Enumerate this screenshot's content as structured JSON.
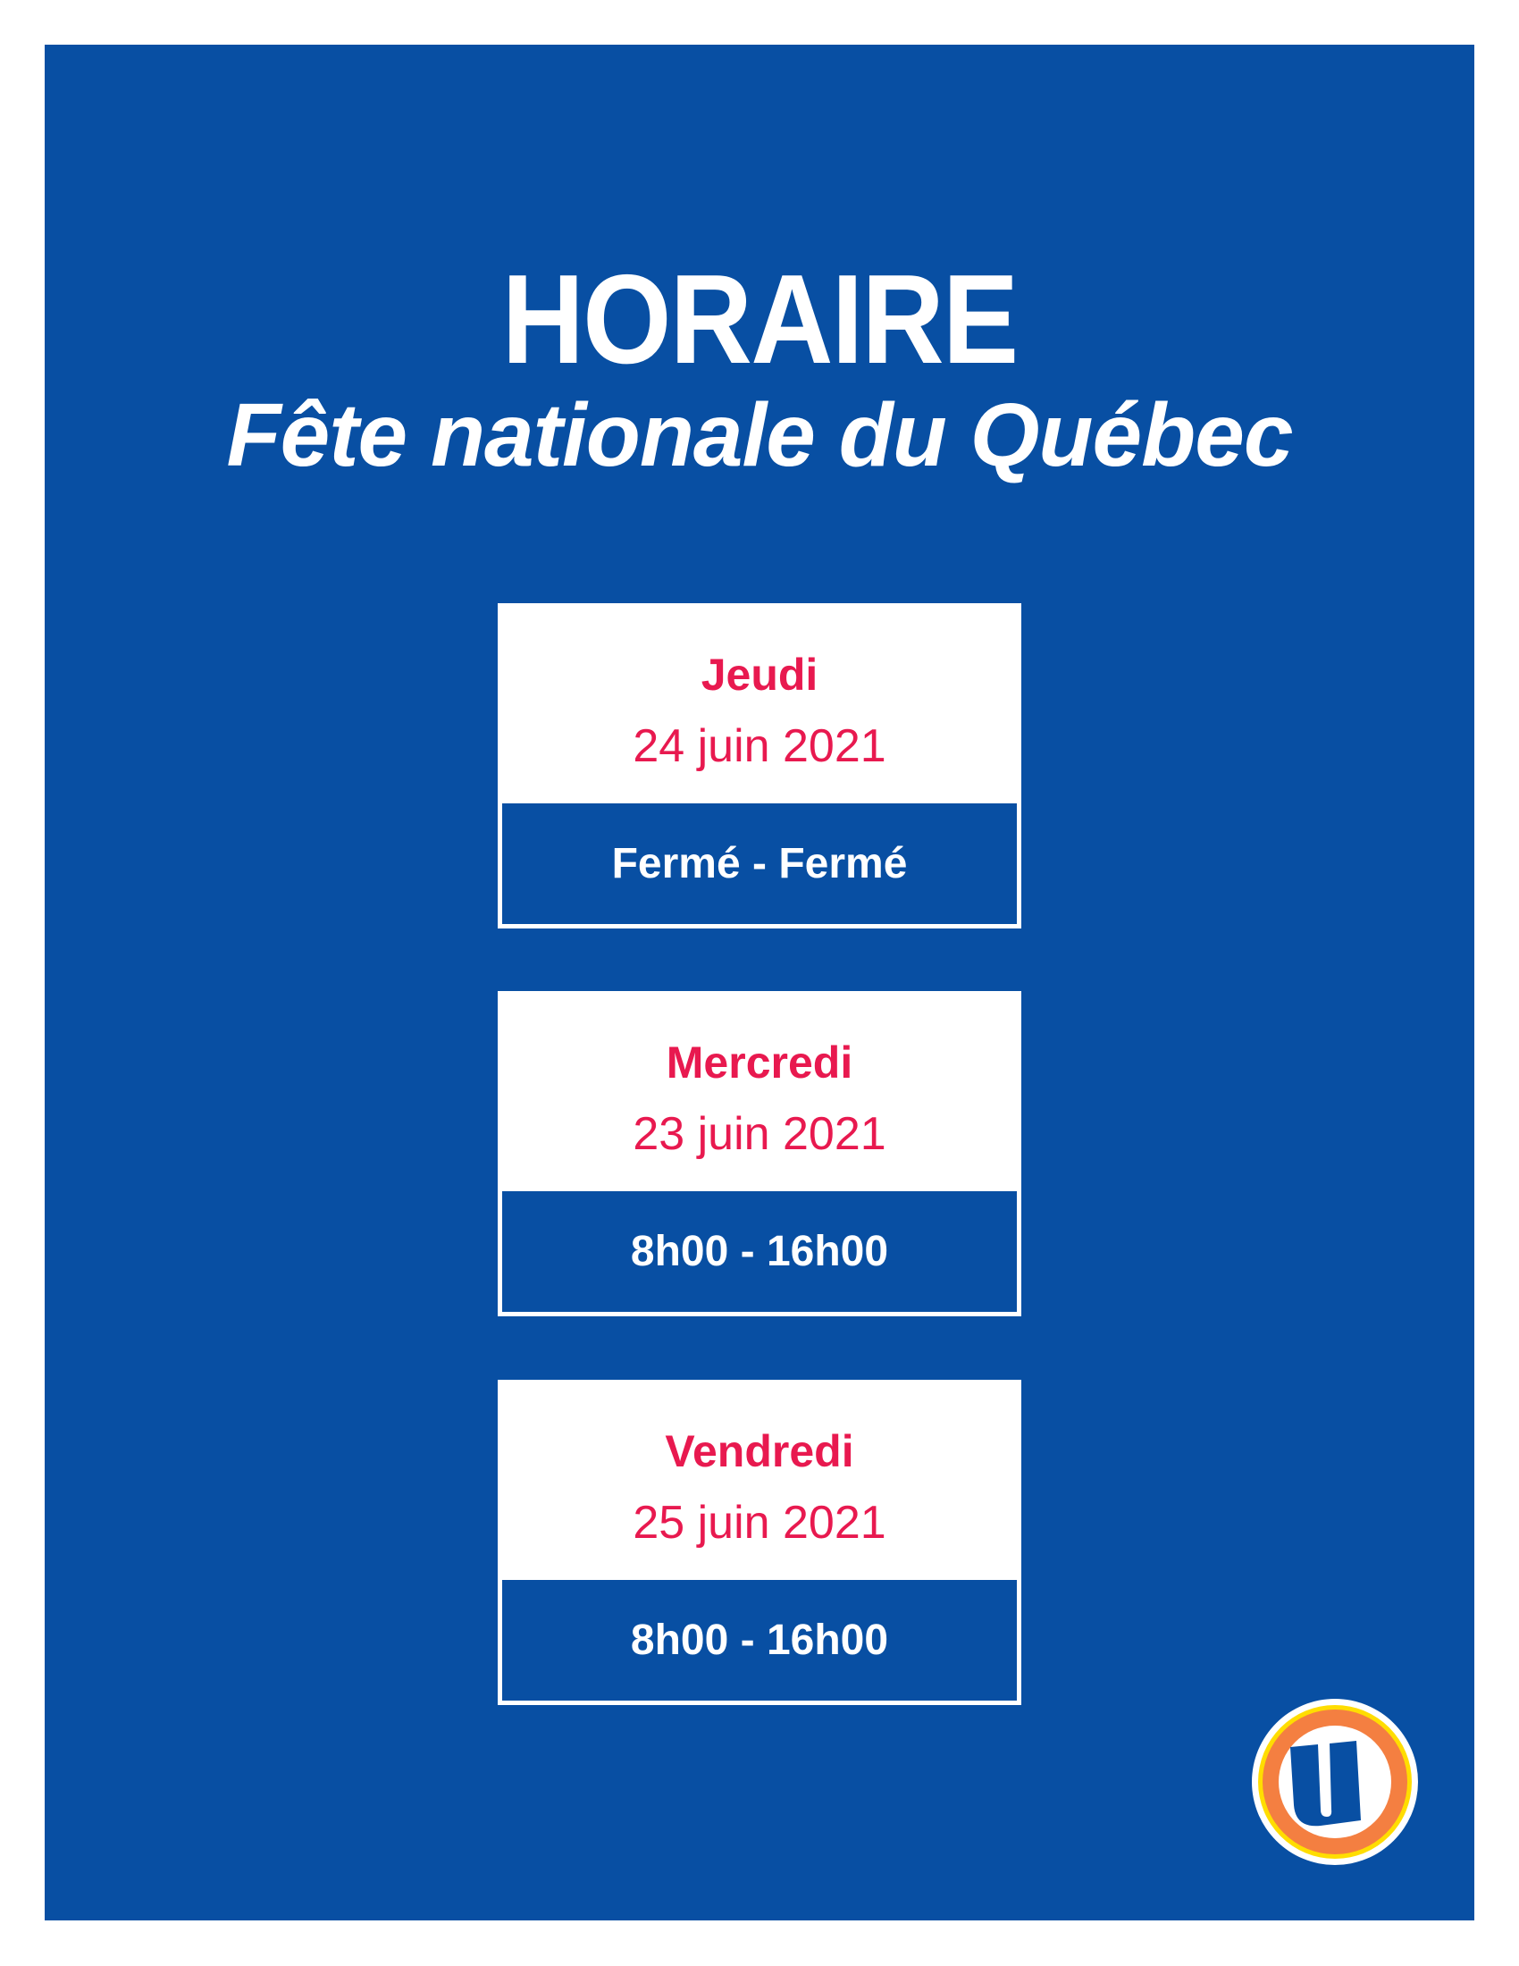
{
  "header": {
    "title": "HORAIRE",
    "subtitle": "Fête nationale du Québec"
  },
  "schedule": [
    {
      "day": "Jeudi",
      "date": "24 juin 2021",
      "hours": "Fermé - Fermé"
    },
    {
      "day": "Mercredi",
      "date": "23 juin 2021",
      "hours": "8h00 - 16h00"
    },
    {
      "day": "Vendredi",
      "date": "25 juin 2021",
      "hours": "8h00 - 16h00"
    }
  ],
  "logo": {
    "letter": "U"
  },
  "colors": {
    "background": "#084fa3",
    "accent": "#e8194f",
    "logo_orange": "#f47f41",
    "logo_yellow": "#ffdd00"
  }
}
